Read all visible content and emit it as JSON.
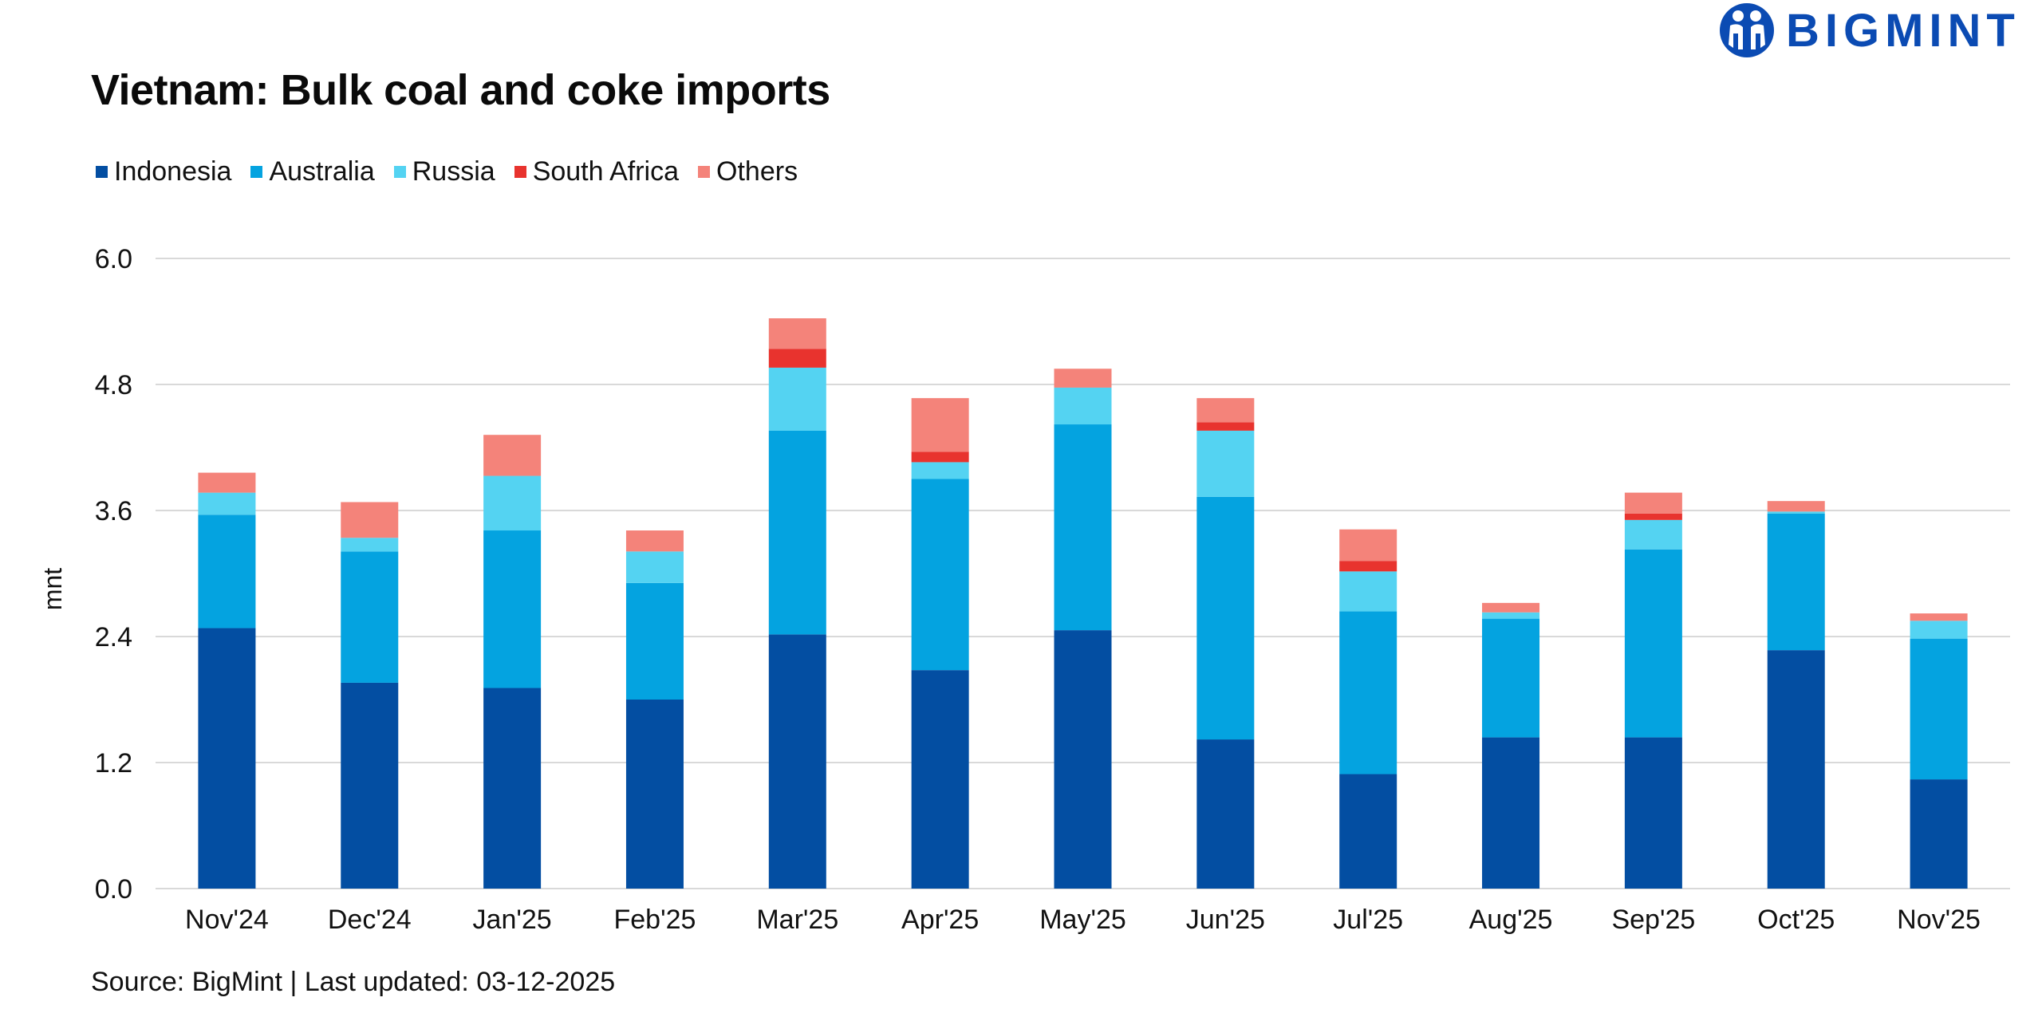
{
  "header": {
    "title": "Vietnam: Bulk coal and coke imports",
    "brand": "BIGMINT"
  },
  "footer": {
    "source": "Source: BigMint | Last updated: 03-12-2025"
  },
  "colors": {
    "Indonesia": "#034ea2",
    "Australia": "#04a3e0",
    "Russia": "#54d3f2",
    "South Africa": "#e8332e",
    "Others": "#f4837a",
    "brand": "#0b4bb3",
    "grid": "#d9d9d9"
  },
  "chart_data": {
    "type": "bar",
    "stacked": true,
    "title": "Vietnam: Bulk coal and coke imports",
    "xlabel": "",
    "ylabel": "mnt",
    "ylim": [
      0,
      6.0
    ],
    "yticks": [
      "0.0",
      "1.2",
      "2.4",
      "3.6",
      "4.8",
      "6.0"
    ],
    "grid": true,
    "legend_position": "top-left",
    "categories": [
      "Nov'24",
      "Dec'24",
      "Jan'25",
      "Feb'25",
      "Mar'25",
      "Apr'25",
      "May'25",
      "Jun'25",
      "Jul'25",
      "Aug'25",
      "Sep'25",
      "Oct'25",
      "Nov'25"
    ],
    "series": [
      {
        "name": "Indonesia",
        "values": [
          2.48,
          1.96,
          1.91,
          1.8,
          2.42,
          2.08,
          2.46,
          1.42,
          1.09,
          1.44,
          1.44,
          2.27,
          1.04
        ]
      },
      {
        "name": "Australia",
        "values": [
          1.08,
          1.25,
          1.5,
          1.11,
          1.94,
          1.82,
          1.96,
          2.31,
          1.55,
          1.13,
          1.79,
          1.3,
          1.34
        ]
      },
      {
        "name": "Russia",
        "values": [
          0.21,
          0.13,
          0.52,
          0.3,
          0.6,
          0.16,
          0.35,
          0.63,
          0.38,
          0.06,
          0.28,
          0.02,
          0.17
        ]
      },
      {
        "name": "South Africa",
        "values": [
          0,
          0,
          0,
          0,
          0.18,
          0.1,
          0,
          0.08,
          0.1,
          0,
          0.06,
          0,
          0
        ]
      },
      {
        "name": "Others",
        "values": [
          0.19,
          0.34,
          0.39,
          0.2,
          0.29,
          0.51,
          0.18,
          0.23,
          0.3,
          0.09,
          0.2,
          0.1,
          0.07
        ]
      }
    ]
  }
}
